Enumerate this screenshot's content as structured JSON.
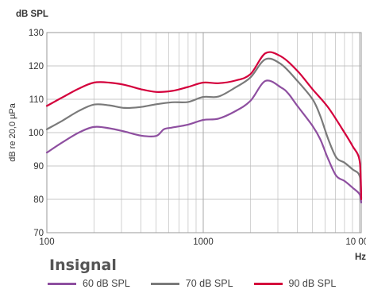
{
  "chart_data": {
    "type": "line",
    "ylabel_top": "dB SPL",
    "ylabel_side": "dB re 20,0 µPa",
    "xlabel": "Hz",
    "x_scale": "log",
    "xlim": [
      100,
      10000
    ],
    "ylim": [
      70,
      130
    ],
    "x_ticks": [
      100,
      1000,
      10000
    ],
    "x_tick_labels": [
      "100",
      "1000",
      "10 000"
    ],
    "y_ticks": [
      70,
      80,
      90,
      100,
      110,
      120,
      130
    ],
    "y_tick_labels": [
      "70",
      "80",
      "90",
      "100",
      "110",
      "120",
      "130"
    ],
    "grid": true,
    "legend_title": "Insignal",
    "legend_position": "bottom",
    "series": [
      {
        "name": "60 dB SPL",
        "color": "#8e4fa0",
        "points": [
          [
            100,
            94
          ],
          [
            125,
            97
          ],
          [
            160,
            100
          ],
          [
            200,
            101.7
          ],
          [
            250,
            101.3
          ],
          [
            315,
            100.3
          ],
          [
            400,
            99.1
          ],
          [
            500,
            99
          ],
          [
            560,
            101
          ],
          [
            630,
            101.5
          ],
          [
            800,
            102.4
          ],
          [
            1000,
            103.8
          ],
          [
            1250,
            104.2
          ],
          [
            1600,
            106.4
          ],
          [
            2000,
            109.5
          ],
          [
            2500,
            115.5
          ],
          [
            3150,
            113.5
          ],
          [
            3500,
            111.7
          ],
          [
            4000,
            108
          ],
          [
            5000,
            102
          ],
          [
            5600,
            98
          ],
          [
            6300,
            92
          ],
          [
            7100,
            87
          ],
          [
            8000,
            85.5
          ],
          [
            9000,
            83.5
          ],
          [
            10000,
            81.5
          ],
          [
            11800,
            79
          ]
        ]
      },
      {
        "name": "70 dB SPL",
        "color": "#7a7a7a",
        "points": [
          [
            100,
            101
          ],
          [
            125,
            103.5
          ],
          [
            160,
            106.5
          ],
          [
            200,
            108.4
          ],
          [
            250,
            108.2
          ],
          [
            315,
            107.4
          ],
          [
            400,
            107.7
          ],
          [
            500,
            108.5
          ],
          [
            630,
            109.1
          ],
          [
            800,
            109.2
          ],
          [
            1000,
            110.7
          ],
          [
            1250,
            110.8
          ],
          [
            1600,
            113.5
          ],
          [
            2000,
            116.5
          ],
          [
            2500,
            122
          ],
          [
            3150,
            120.5
          ],
          [
            4000,
            115.5
          ],
          [
            5000,
            110
          ],
          [
            5600,
            105
          ],
          [
            6300,
            98
          ],
          [
            7100,
            92.5
          ],
          [
            8000,
            91
          ],
          [
            9000,
            89
          ],
          [
            10000,
            87
          ],
          [
            11800,
            80.5
          ]
        ]
      },
      {
        "name": "90 dB SPL",
        "color": "#d4003c",
        "points": [
          [
            100,
            108
          ],
          [
            125,
            110.5
          ],
          [
            160,
            113.2
          ],
          [
            200,
            115
          ],
          [
            250,
            115
          ],
          [
            315,
            114.3
          ],
          [
            400,
            113
          ],
          [
            500,
            112.2
          ],
          [
            630,
            112.5
          ],
          [
            800,
            113.7
          ],
          [
            1000,
            115
          ],
          [
            1250,
            114.8
          ],
          [
            1600,
            115.6
          ],
          [
            2000,
            117.5
          ],
          [
            2500,
            123.8
          ],
          [
            3150,
            122.8
          ],
          [
            4000,
            118.5
          ],
          [
            5000,
            113
          ],
          [
            6300,
            107.5
          ],
          [
            8000,
            100
          ],
          [
            9000,
            96
          ],
          [
            10000,
            91.5
          ],
          [
            11800,
            80
          ]
        ]
      }
    ]
  }
}
